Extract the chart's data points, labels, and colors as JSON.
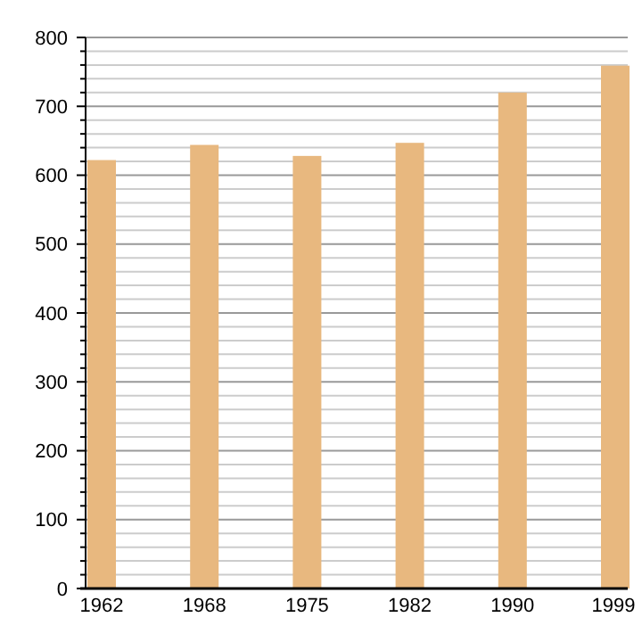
{
  "chart_data": {
    "type": "bar",
    "categories": [
      "1962",
      "1968",
      "1975",
      "1982",
      "1990",
      "1999"
    ],
    "values": [
      622,
      644,
      628,
      647,
      720,
      759
    ],
    "color": "#e8b87f",
    "ylim": [
      0,
      800
    ],
    "yticks": [
      0,
      {
        "value": 20,
        "label": null
      },
      {
        "value": 40,
        "label": null
      },
      {
        "value": 60,
        "label": null
      },
      {
        "value": 80,
        "label": null
      },
      100,
      {
        "value": 120,
        "label": null
      },
      {
        "value": 140,
        "label": null
      },
      {
        "value": 160,
        "label": null
      },
      {
        "value": 180,
        "label": null
      },
      200,
      {
        "value": 220,
        "label": null
      },
      {
        "value": 240,
        "label": null
      },
      {
        "value": 260,
        "label": null
      },
      {
        "value": 280,
        "label": null
      },
      300,
      {
        "value": 320,
        "label": null
      },
      {
        "value": 340,
        "label": null
      },
      {
        "value": 360,
        "label": null
      },
      {
        "value": 380,
        "label": null
      },
      400,
      {
        "value": 420,
        "label": null
      },
      {
        "value": 440,
        "label": null
      },
      {
        "value": 460,
        "label": null
      },
      {
        "value": 480,
        "label": null
      },
      500,
      {
        "value": 520,
        "label": null
      },
      {
        "value": 540,
        "label": null
      },
      {
        "value": 560,
        "label": null
      },
      {
        "value": 580,
        "label": null
      },
      600,
      {
        "value": 620,
        "label": null
      },
      {
        "value": 640,
        "label": null
      },
      {
        "value": 660,
        "label": null
      },
      {
        "value": 680,
        "label": null
      },
      700,
      {
        "value": 720,
        "label": null
      },
      {
        "value": 740,
        "label": null
      },
      {
        "value": 760,
        "label": null
      },
      {
        "value": 780,
        "label": null
      },
      800
    ],
    "grid": true
  }
}
